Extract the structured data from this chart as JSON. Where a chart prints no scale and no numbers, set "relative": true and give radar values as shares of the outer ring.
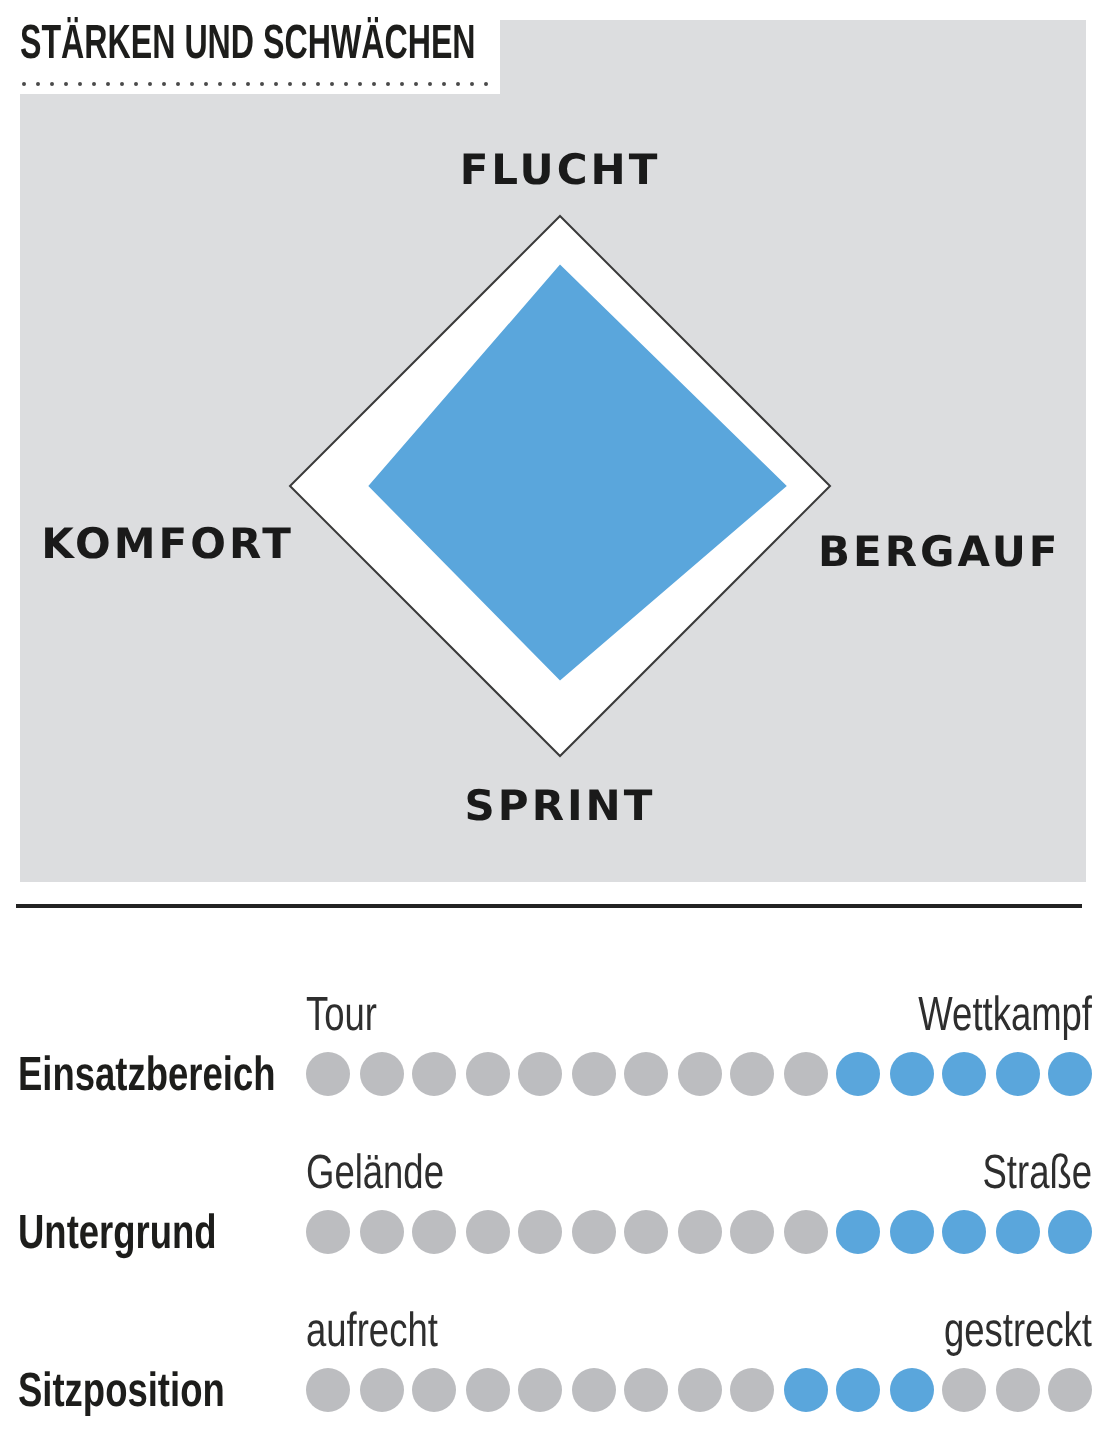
{
  "chart_data": [
    {
      "type": "radar",
      "title": "STÄRKEN UND SCHWÄCHEN",
      "categories": [
        "FLUCHT",
        "BERGAUF",
        "SPRINT",
        "KOMFORT"
      ],
      "values": [
        0.82,
        0.84,
        0.72,
        0.71
      ],
      "color": "#5aa6dc",
      "relative": true
    },
    {
      "type": "other",
      "title": "Einsatzbereich",
      "categories": [
        "Tour",
        null,
        null,
        null,
        null,
        null,
        null,
        null,
        null,
        null,
        null,
        null,
        null,
        null,
        "Wettkampf"
      ],
      "colors": [
        "#bcbdc0",
        "#bcbdc0",
        "#bcbdc0",
        "#bcbdc0",
        "#bcbdc0",
        "#bcbdc0",
        "#bcbdc0",
        "#bcbdc0",
        "#bcbdc0",
        "#bcbdc0",
        "#5aa6dc",
        "#5aa6dc",
        "#5aa6dc",
        "#5aa6dc",
        "#5aa6dc"
      ]
    },
    {
      "type": "other",
      "title": "Untergrund",
      "categories": [
        "Gelände",
        null,
        null,
        null,
        null,
        null,
        null,
        null,
        null,
        null,
        null,
        null,
        null,
        null,
        "Straße"
      ],
      "colors": [
        "#bcbdc0",
        "#bcbdc0",
        "#bcbdc0",
        "#bcbdc0",
        "#bcbdc0",
        "#bcbdc0",
        "#bcbdc0",
        "#bcbdc0",
        "#bcbdc0",
        "#bcbdc0",
        "#5aa6dc",
        "#5aa6dc",
        "#5aa6dc",
        "#5aa6dc",
        "#5aa6dc"
      ]
    },
    {
      "type": "other",
      "title": "Sitzposition",
      "categories": [
        "aufrecht",
        null,
        null,
        null,
        null,
        null,
        null,
        null,
        null,
        null,
        null,
        null,
        null,
        null,
        "gestreckt"
      ],
      "colors": [
        "#bcbdc0",
        "#bcbdc0",
        "#bcbdc0",
        "#bcbdc0",
        "#bcbdc0",
        "#bcbdc0",
        "#bcbdc0",
        "#bcbdc0",
        "#bcbdc0",
        "#5aa6dc",
        "#5aa6dc",
        "#5aa6dc",
        "#bcbdc0",
        "#bcbdc0",
        "#bcbdc0"
      ]
    }
  ]
}
